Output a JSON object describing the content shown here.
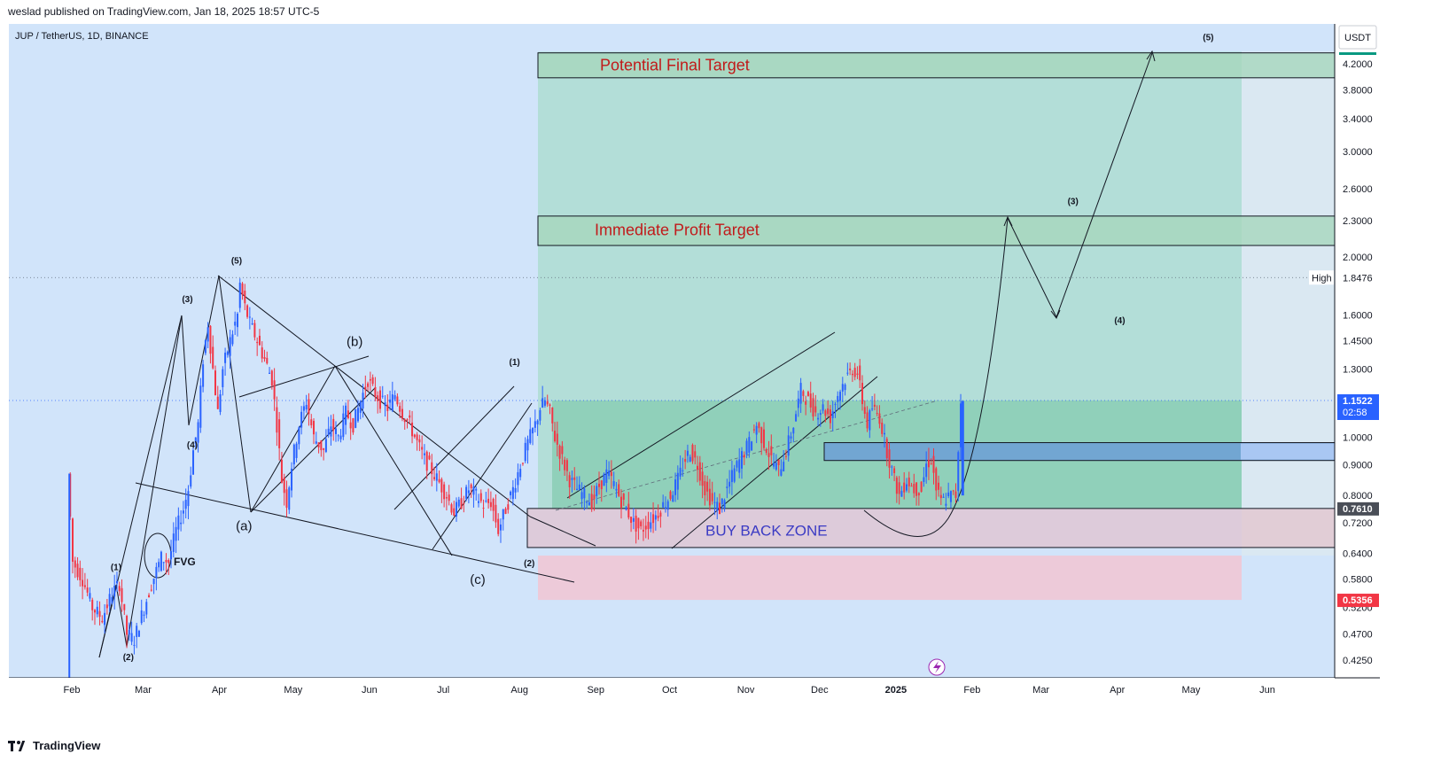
{
  "header": {
    "published": "weslad published on TradingView.com, Jan 18, 2025 18:57 UTC-5"
  },
  "footer": {
    "brand": "TradingView"
  },
  "chart_data": {
    "type": "candlestick",
    "symbol": "JUP / TetherUS, 1D, BINANCE",
    "currency": "USDT",
    "y_scale": "log",
    "ylim": [
      0.4,
      4.5
    ],
    "grid": false,
    "y_ticks": [
      "4.2000",
      "3.8000",
      "3.4000",
      "3.0000",
      "2.6000",
      "2.3000",
      "2.0000",
      "1.6000",
      "1.4500",
      "1.3000",
      "1.0000",
      "0.9000",
      "0.8000",
      "0.7200",
      "0.6400",
      "0.5800",
      "0.5200",
      "0.4700",
      "0.4250"
    ],
    "y_tick_values": [
      4.2,
      3.8,
      3.4,
      3.0,
      2.6,
      2.3,
      2.0,
      1.6,
      1.45,
      1.3,
      1.0,
      0.9,
      0.8,
      0.72,
      0.64,
      0.58,
      0.52,
      0.47,
      0.425
    ],
    "x_ticks": [
      {
        "label": "Feb",
        "date": "2024-02-01"
      },
      {
        "label": "Mar",
        "date": "2024-03-01"
      },
      {
        "label": "Apr",
        "date": "2024-04-01"
      },
      {
        "label": "May",
        "date": "2024-05-01"
      },
      {
        "label": "Jun",
        "date": "2024-06-01"
      },
      {
        "label": "Jul",
        "date": "2024-07-01"
      },
      {
        "label": "Aug",
        "date": "2024-08-01"
      },
      {
        "label": "Sep",
        "date": "2024-09-01"
      },
      {
        "label": "Oct",
        "date": "2024-10-01"
      },
      {
        "label": "Nov",
        "date": "2024-11-01"
      },
      {
        "label": "Dec",
        "date": "2024-12-01"
      },
      {
        "label": "2025",
        "date": "2025-01-01"
      },
      {
        "label": "Feb",
        "date": "2025-02-01"
      },
      {
        "label": "Mar",
        "date": "2025-03-01"
      },
      {
        "label": "Apr",
        "date": "2025-04-01"
      },
      {
        "label": "May",
        "date": "2025-05-01"
      },
      {
        "label": "Jun",
        "date": "2025-06-01"
      }
    ],
    "price_labels": [
      {
        "name": "High",
        "value": 1.8476,
        "text": "1.8476",
        "tag": "High"
      },
      {
        "name": "current",
        "value": 1.1522,
        "text": "1.1522",
        "sub": "02:58"
      },
      {
        "name": "target-line",
        "value": 0.761,
        "text": "0.7610"
      },
      {
        "name": "stop",
        "value": 0.5356,
        "text": "0.5356"
      }
    ],
    "price_path": [
      [
        "2024-01-31",
        0.87
      ],
      [
        "2024-02-02",
        0.62
      ],
      [
        "2024-02-06",
        0.58
      ],
      [
        "2024-02-10",
        0.52
      ],
      [
        "2024-02-14",
        0.5
      ],
      [
        "2024-02-18",
        0.55
      ],
      [
        "2024-02-21",
        0.57
      ],
      [
        "2024-02-24",
        0.47
      ],
      [
        "2024-02-27",
        0.46
      ],
      [
        "2024-03-02",
        0.52
      ],
      [
        "2024-03-05",
        0.57
      ],
      [
        "2024-03-09",
        0.63
      ],
      [
        "2024-03-12",
        0.62
      ],
      [
        "2024-03-15",
        0.7
      ],
      [
        "2024-03-18",
        0.76
      ],
      [
        "2024-03-20",
        0.82
      ],
      [
        "2024-03-22",
        0.95
      ],
      [
        "2024-03-24",
        1.05
      ],
      [
        "2024-03-26",
        1.35
      ],
      [
        "2024-03-28",
        1.55
      ],
      [
        "2024-03-30",
        1.3
      ],
      [
        "2024-04-01",
        1.1
      ],
      [
        "2024-04-03",
        1.3
      ],
      [
        "2024-04-06",
        1.45
      ],
      [
        "2024-04-09",
        1.6
      ],
      [
        "2024-04-10",
        1.8
      ],
      [
        "2024-04-12",
        1.65
      ],
      [
        "2024-04-14",
        1.55
      ],
      [
        "2024-04-17",
        1.45
      ],
      [
        "2024-04-20",
        1.35
      ],
      [
        "2024-04-23",
        1.25
      ],
      [
        "2024-04-25",
        1.05
      ],
      [
        "2024-04-27",
        0.85
      ],
      [
        "2024-04-29",
        0.78
      ],
      [
        "2024-05-01",
        0.9
      ],
      [
        "2024-05-04",
        1.05
      ],
      [
        "2024-05-07",
        1.15
      ],
      [
        "2024-05-10",
        1.0
      ],
      [
        "2024-05-14",
        0.95
      ],
      [
        "2024-05-17",
        1.05
      ],
      [
        "2024-05-20",
        1.0
      ],
      [
        "2024-05-23",
        1.1
      ],
      [
        "2024-05-26",
        1.05
      ],
      [
        "2024-05-29",
        1.15
      ],
      [
        "2024-06-01",
        1.25
      ],
      [
        "2024-06-03",
        1.2
      ],
      [
        "2024-06-06",
        1.15
      ],
      [
        "2024-06-09",
        1.12
      ],
      [
        "2024-06-12",
        1.18
      ],
      [
        "2024-06-15",
        1.1
      ],
      [
        "2024-06-18",
        1.05
      ],
      [
        "2024-06-21",
        0.98
      ],
      [
        "2024-06-24",
        0.92
      ],
      [
        "2024-06-27",
        0.88
      ],
      [
        "2024-06-30",
        0.84
      ],
      [
        "2024-07-03",
        0.8
      ],
      [
        "2024-07-06",
        0.75
      ],
      [
        "2024-07-09",
        0.78
      ],
      [
        "2024-07-12",
        0.82
      ],
      [
        "2024-07-15",
        0.8
      ],
      [
        "2024-07-18",
        0.77
      ],
      [
        "2024-07-21",
        0.78
      ],
      [
        "2024-07-24",
        0.7
      ],
      [
        "2024-07-27",
        0.76
      ],
      [
        "2024-07-30",
        0.82
      ],
      [
        "2024-08-02",
        0.9
      ],
      [
        "2024-08-05",
        0.98
      ],
      [
        "2024-08-08",
        1.05
      ],
      [
        "2024-08-10",
        1.12
      ],
      [
        "2024-08-12",
        1.15
      ],
      [
        "2024-08-14",
        1.1
      ],
      [
        "2024-08-16",
        1.0
      ],
      [
        "2024-08-19",
        0.92
      ],
      [
        "2024-08-22",
        0.85
      ],
      [
        "2024-08-25",
        0.82
      ],
      [
        "2024-08-28",
        0.8
      ],
      [
        "2024-08-31",
        0.78
      ],
      [
        "2024-09-03",
        0.83
      ],
      [
        "2024-09-06",
        0.87
      ],
      [
        "2024-09-08",
        0.85
      ],
      [
        "2024-09-11",
        0.8
      ],
      [
        "2024-09-14",
        0.76
      ],
      [
        "2024-09-17",
        0.72
      ],
      [
        "2024-09-20",
        0.7
      ],
      [
        "2024-09-23",
        0.72
      ],
      [
        "2024-09-26",
        0.74
      ],
      [
        "2024-09-29",
        0.77
      ],
      [
        "2024-10-02",
        0.8
      ],
      [
        "2024-10-05",
        0.85
      ],
      [
        "2024-10-08",
        0.92
      ],
      [
        "2024-10-10",
        0.95
      ],
      [
        "2024-10-13",
        0.9
      ],
      [
        "2024-10-16",
        0.82
      ],
      [
        "2024-10-19",
        0.78
      ],
      [
        "2024-10-22",
        0.76
      ],
      [
        "2024-10-25",
        0.82
      ],
      [
        "2024-10-28",
        0.88
      ],
      [
        "2024-10-31",
        0.93
      ],
      [
        "2024-11-03",
        0.98
      ],
      [
        "2024-11-06",
        1.05
      ],
      [
        "2024-11-09",
        0.98
      ],
      [
        "2024-11-12",
        0.92
      ],
      [
        "2024-11-15",
        0.88
      ],
      [
        "2024-11-18",
        0.95
      ],
      [
        "2024-11-21",
        1.05
      ],
      [
        "2024-11-24",
        1.2
      ],
      [
        "2024-11-27",
        1.15
      ],
      [
        "2024-11-30",
        1.1
      ],
      [
        "2024-12-03",
        1.12
      ],
      [
        "2024-12-06",
        1.08
      ],
      [
        "2024-12-09",
        1.18
      ],
      [
        "2024-12-12",
        1.25
      ],
      [
        "2024-12-15",
        1.3
      ],
      [
        "2024-12-17",
        1.28
      ],
      [
        "2024-12-19",
        1.15
      ],
      [
        "2024-12-21",
        1.05
      ],
      [
        "2024-12-23",
        1.12
      ],
      [
        "2024-12-26",
        1.08
      ],
      [
        "2024-12-29",
        0.95
      ],
      [
        "2025-01-01",
        0.85
      ],
      [
        "2025-01-03",
        0.8
      ],
      [
        "2025-01-06",
        0.85
      ],
      [
        "2025-01-09",
        0.82
      ],
      [
        "2025-01-12",
        0.82
      ],
      [
        "2025-01-14",
        0.9
      ],
      [
        "2025-01-16",
        0.92
      ],
      [
        "2025-01-18",
        0.82
      ],
      [
        "2025-01-20",
        0.78
      ],
      [
        "2025-01-22",
        0.79
      ],
      [
        "2025-01-24",
        0.8
      ],
      [
        "2025-01-26",
        0.8
      ],
      [
        "2025-01-28",
        1.15
      ]
    ],
    "annotations": {
      "zones": [
        {
          "name": "potential-final-target",
          "label": "Potential Final Target"
        },
        {
          "name": "immediate-profit-target",
          "label": "Immediate Profit Target"
        },
        {
          "name": "buy-back-zone",
          "label": "BUY BACK ZONE"
        }
      ],
      "fvg_label": "FVG",
      "wave_labels": [
        {
          "text": "(1)",
          "date": "2024-02-19",
          "price": 0.6
        },
        {
          "text": "(2)",
          "date": "2024-02-24",
          "price": 0.425
        },
        {
          "text": "(3)",
          "date": "2024-03-19",
          "price": 1.68
        },
        {
          "text": "(4)",
          "date": "2024-03-21",
          "price": 0.96
        },
        {
          "text": "(5)",
          "date": "2024-04-08",
          "price": 1.95
        },
        {
          "text": "(a)",
          "date": "2024-04-11",
          "price": 0.7
        },
        {
          "text": "(b)",
          "date": "2024-05-26",
          "price": 1.42
        },
        {
          "text": "(c)",
          "date": "2024-07-15",
          "price": 0.57
        },
        {
          "text": "(1)",
          "date": "2024-07-30",
          "price": 1.32
        },
        {
          "text": "(2)",
          "date": "2024-08-05",
          "price": 0.61
        },
        {
          "text": "(3)",
          "date": "2025-03-14",
          "price": 2.45
        },
        {
          "text": "(4)",
          "date": "2025-04-02",
          "price": 1.55
        },
        {
          "text": "(5)",
          "date": "2025-05-08",
          "price": 4.6
        }
      ]
    }
  }
}
